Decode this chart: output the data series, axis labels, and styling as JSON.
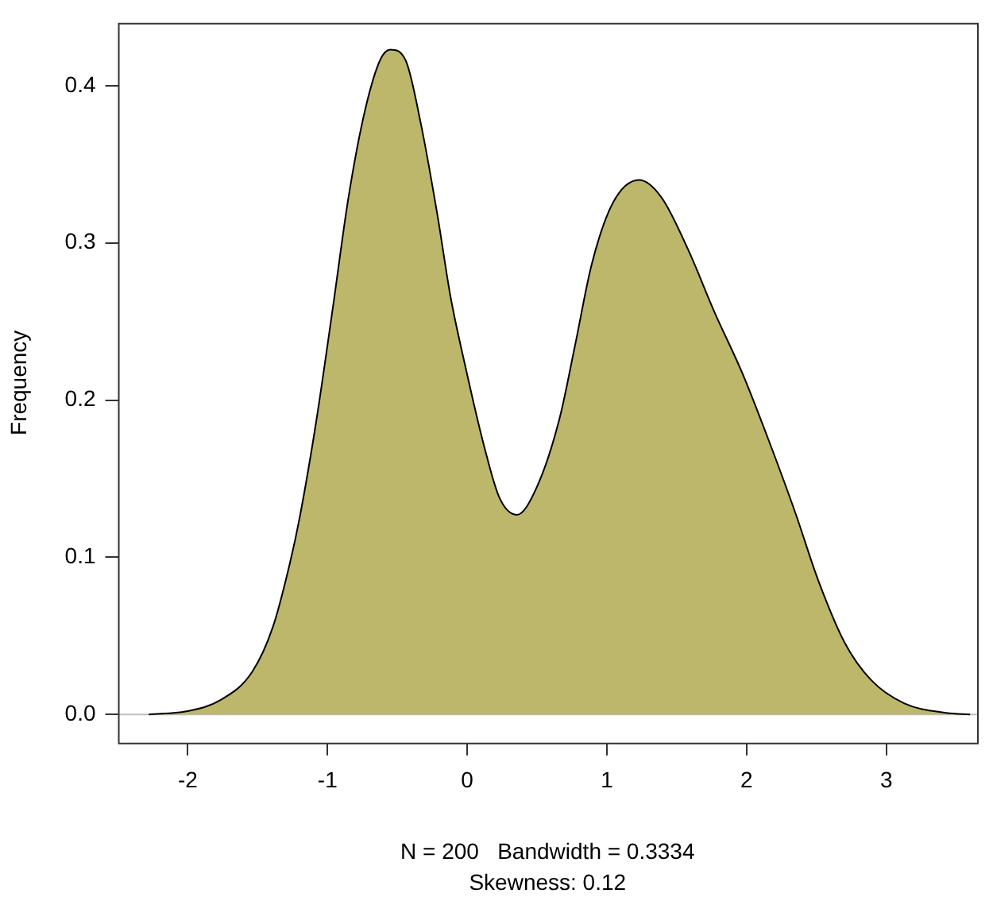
{
  "chart_data": {
    "type": "area",
    "xlabel": "N = 200   Bandwidth = 0.3334",
    "ylabel": "Frequency",
    "annotations": [
      "Skewness: 0.12"
    ],
    "xlim": [
      -2.5,
      3.65
    ],
    "ylim": [
      -0.018,
      0.44
    ],
    "xticks": [
      -2,
      -1,
      0,
      1,
      2,
      3
    ],
    "yticks": [
      {
        "value": 0,
        "label": "0.0"
      },
      {
        "value": 0.1,
        "label": "0.1"
      },
      {
        "value": 0.2,
        "label": "0.2"
      },
      {
        "value": 0.3,
        "label": "0.3"
      },
      {
        "value": 0.4,
        "label": "0.4"
      }
    ],
    "grid": false,
    "legend": false,
    "marker": "none",
    "ref_lines": [
      {
        "axis": "y",
        "value": 0,
        "color": "#bebebe"
      }
    ],
    "series": [
      {
        "color": "#bdb76b",
        "x": [
          -2.28,
          -2.01,
          -1.77,
          -1.54,
          -1.39,
          -1.27,
          -1.2,
          -1.08,
          -0.96,
          -0.85,
          -0.73,
          -0.62,
          -0.55,
          -0.44,
          -0.33,
          -0.21,
          -0.12,
          -0.02,
          0.12,
          0.23,
          0.355,
          0.5,
          0.66,
          0.77,
          0.89,
          1.04,
          1.23,
          1.39,
          1.58,
          1.77,
          1.97,
          2.16,
          2.35,
          2.51,
          2.7,
          2.89,
          3.13,
          3.43,
          3.6
        ],
        "values": [
          0,
          0.002,
          0.009,
          0.027,
          0.056,
          0.096,
          0.125,
          0.187,
          0.26,
          0.329,
          0.385,
          0.417,
          0.423,
          0.416,
          0.375,
          0.316,
          0.266,
          0.224,
          0.171,
          0.138,
          0.127,
          0.145,
          0.188,
          0.234,
          0.286,
          0.325,
          0.34,
          0.329,
          0.296,
          0.256,
          0.217,
          0.174,
          0.128,
          0.086,
          0.046,
          0.022,
          0.007,
          0.001,
          0
        ]
      }
    ]
  }
}
